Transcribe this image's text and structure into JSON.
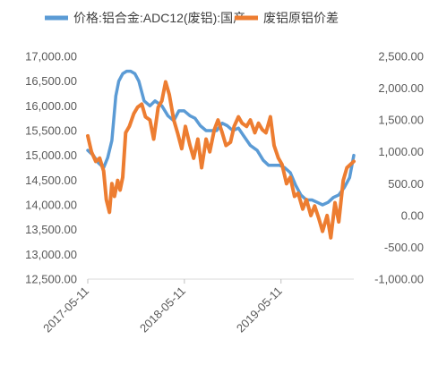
{
  "chart_data": {
    "type": "line",
    "title": "",
    "xlabel": "",
    "ylabel": "",
    "y2label": "",
    "legend_position": "top",
    "grid": false,
    "x_tick_labels": [
      "2017-05-11",
      "2018-05-11",
      "2019-05-11"
    ],
    "ylim": [
      12500,
      17000
    ],
    "y_ticks": [
      "12,500.00",
      "13,000.00",
      "13,500.00",
      "14,000.00",
      "14,500.00",
      "15,000.00",
      "15,500.00",
      "16,000.00",
      "16,500.00",
      "17,000.00"
    ],
    "y2lim": [
      -1000,
      2500
    ],
    "y2_ticks": [
      "-1,000.00",
      "-500.00",
      "0.00",
      "500.00",
      "1,000.00",
      "1,500.00",
      "2,000.00",
      "2,500.00"
    ],
    "series": [
      {
        "name": "价格:铝合金:ADC12(废铝):国产",
        "axis": "left",
        "color": "#5B9BD5",
        "x": [
          "2017-05-11",
          "2017-06-01",
          "2017-06-20",
          "2017-07-10",
          "2017-07-25",
          "2017-08-10",
          "2017-08-25",
          "2017-09-05",
          "2017-09-20",
          "2017-10-05",
          "2017-10-20",
          "2017-11-05",
          "2017-11-20",
          "2017-12-10",
          "2018-01-01",
          "2018-01-20",
          "2018-02-15",
          "2018-03-10",
          "2018-04-01",
          "2018-04-20",
          "2018-05-10",
          "2018-06-01",
          "2018-06-20",
          "2018-07-10",
          "2018-08-01",
          "2018-08-20",
          "2018-09-10",
          "2018-10-01",
          "2018-10-20",
          "2018-11-10",
          "2018-12-01",
          "2018-12-20",
          "2019-01-15",
          "2019-02-10",
          "2019-03-05",
          "2019-03-25",
          "2019-04-15",
          "2019-05-05",
          "2019-05-25",
          "2019-06-15",
          "2019-07-05",
          "2019-07-25",
          "2019-08-15",
          "2019-09-05",
          "2019-09-25",
          "2019-10-15",
          "2019-11-05",
          "2019-11-25",
          "2019-12-15",
          "2020-01-05",
          "2020-01-25",
          "2020-02-10"
        ],
        "values": [
          15100,
          15000,
          14850,
          14750,
          14950,
          15300,
          16200,
          16500,
          16650,
          16700,
          16700,
          16650,
          16500,
          16100,
          16000,
          16100,
          16000,
          15800,
          15700,
          15900,
          15900,
          15800,
          15750,
          15600,
          15500,
          15500,
          15500,
          15650,
          15600,
          15500,
          15550,
          15400,
          15200,
          15100,
          14900,
          14800,
          14800,
          14800,
          14750,
          14650,
          14400,
          14200,
          14100,
          14100,
          14050,
          14000,
          14050,
          14150,
          14200,
          14350,
          14550,
          15000
        ]
      },
      {
        "name": "废铝原铝价差",
        "axis": "right",
        "color": "#ED7D31",
        "x": [
          "2017-05-11",
          "2017-05-25",
          "2017-06-10",
          "2017-06-25",
          "2017-07-10",
          "2017-07-20",
          "2017-08-01",
          "2017-08-10",
          "2017-08-20",
          "2017-09-01",
          "2017-09-10",
          "2017-09-20",
          "2017-10-01",
          "2017-10-15",
          "2017-11-01",
          "2017-11-15",
          "2017-12-01",
          "2017-12-15",
          "2018-01-01",
          "2018-01-15",
          "2018-02-01",
          "2018-02-15",
          "2018-03-01",
          "2018-03-15",
          "2018-04-01",
          "2018-04-15",
          "2018-05-01",
          "2018-05-15",
          "2018-06-01",
          "2018-06-15",
          "2018-07-01",
          "2018-07-15",
          "2018-08-01",
          "2018-08-15",
          "2018-09-01",
          "2018-09-15",
          "2018-10-01",
          "2018-10-15",
          "2018-11-01",
          "2018-11-15",
          "2018-12-01",
          "2018-12-15",
          "2019-01-01",
          "2019-01-15",
          "2019-02-01",
          "2019-02-15",
          "2019-03-01",
          "2019-03-15",
          "2019-04-01",
          "2019-04-15",
          "2019-05-01",
          "2019-05-15",
          "2019-06-01",
          "2019-06-15",
          "2019-07-01",
          "2019-07-15",
          "2019-08-01",
          "2019-08-15",
          "2019-09-01",
          "2019-09-15",
          "2019-10-01",
          "2019-10-15",
          "2019-11-01",
          "2019-11-15",
          "2019-12-01",
          "2019-12-15",
          "2020-01-01",
          "2020-01-15",
          "2020-02-10"
        ],
        "values": [
          1250,
          1000,
          850,
          900,
          700,
          250,
          50,
          500,
          300,
          550,
          400,
          600,
          1300,
          1400,
          1600,
          1700,
          1750,
          1550,
          1500,
          1200,
          1700,
          1800,
          2100,
          1900,
          1500,
          1300,
          1050,
          1400,
          1100,
          900,
          1200,
          750,
          1200,
          1000,
          1350,
          1500,
          1300,
          1100,
          1150,
          1400,
          1550,
          1450,
          1400,
          1500,
          1300,
          1450,
          1350,
          1300,
          1550,
          1100,
          900,
          800,
          500,
          600,
          300,
          350,
          100,
          250,
          0,
          150,
          -50,
          -250,
          0,
          -350,
          200,
          -100,
          550,
          750,
          850
        ]
      }
    ]
  }
}
